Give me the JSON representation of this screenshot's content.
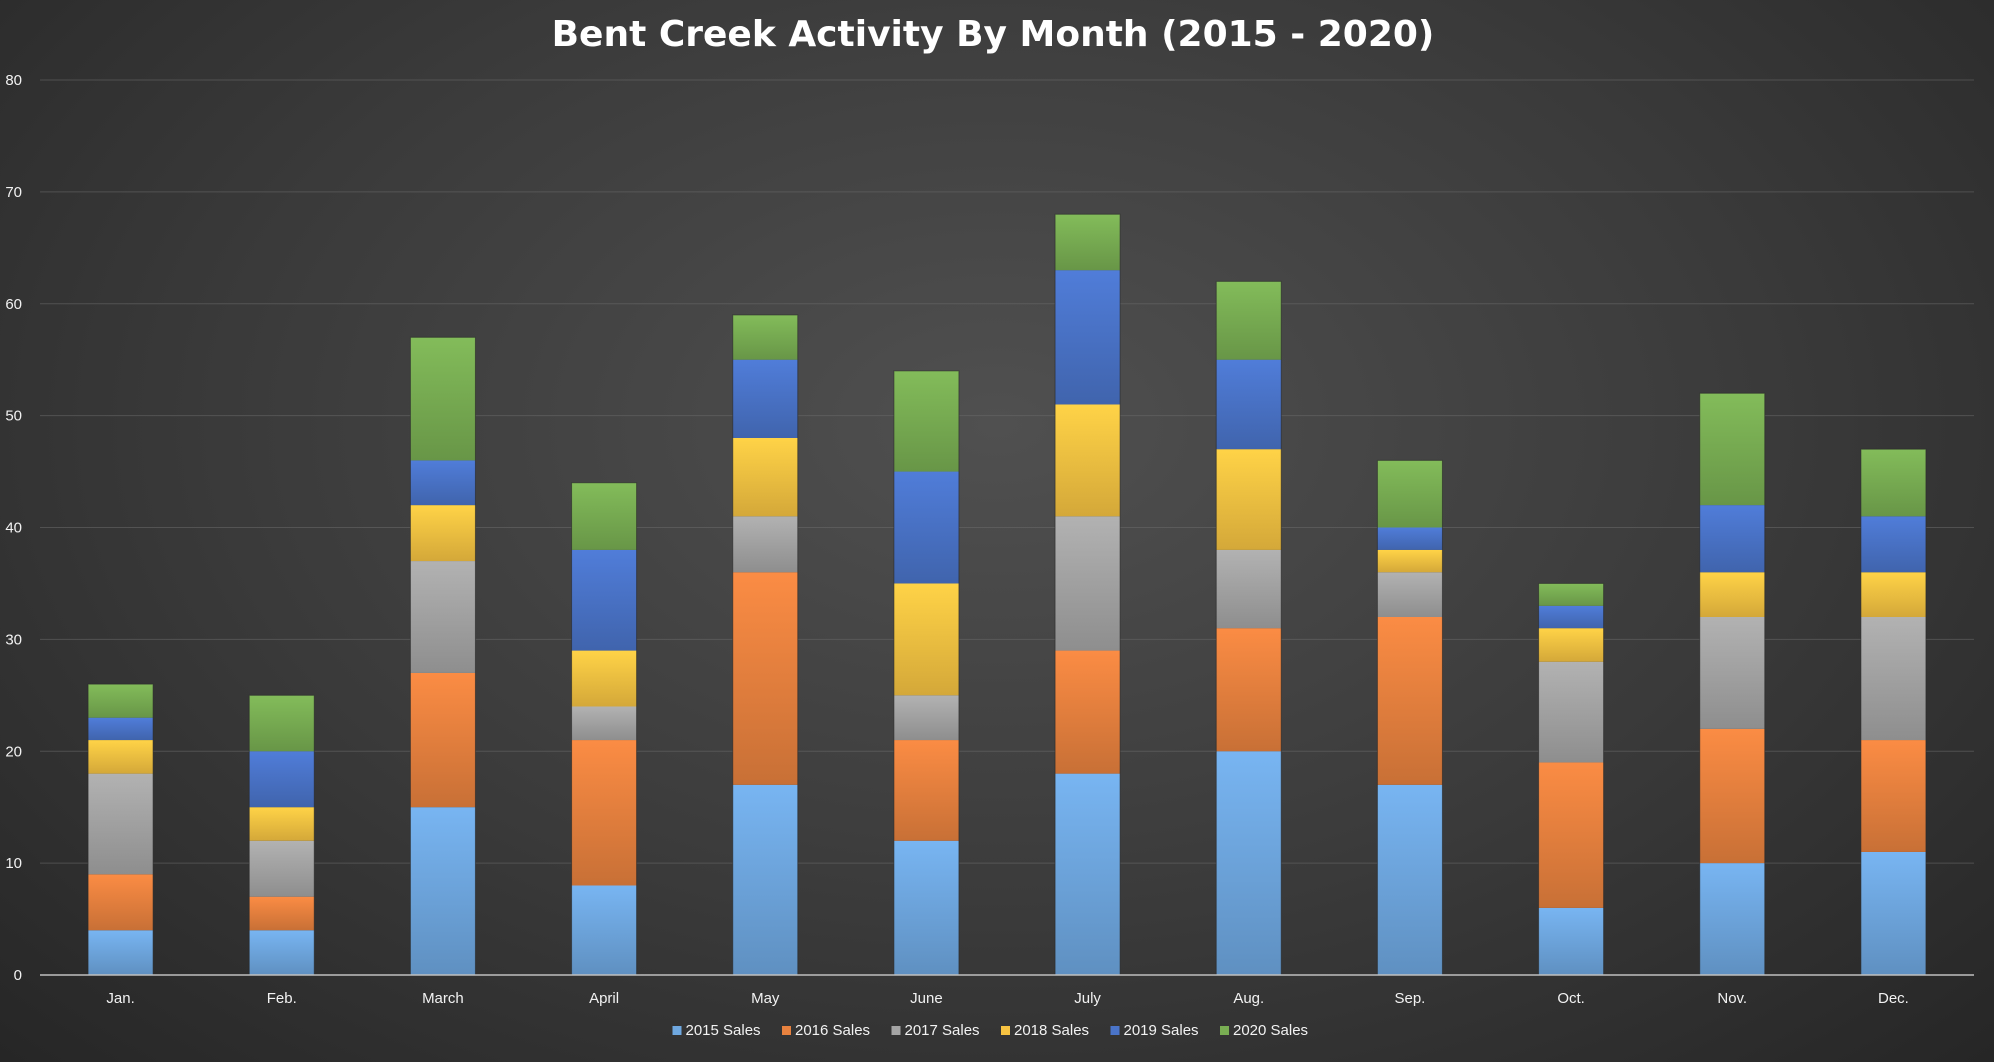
{
  "chart_data": {
    "type": "bar",
    "stacked": true,
    "title": "Bent Creek Activity By Month (2015 - 2020)",
    "xlabel": "",
    "ylabel": "",
    "ylim": [
      0,
      80
    ],
    "yticks": [
      "0",
      "10",
      "20",
      "30",
      "40",
      "50",
      "60",
      "70",
      "80"
    ],
    "grid": true,
    "legend_position": "bottom",
    "categories": [
      "Jan.",
      "Feb.",
      "March",
      "April",
      "May",
      "June",
      "July",
      "Aug.",
      "Sep.",
      "Oct.",
      "Nov.",
      "Dec."
    ],
    "series": [
      {
        "name": "2015 Sales",
        "color": "#6fa8e0",
        "values": [
          4,
          4,
          15,
          8,
          17,
          12,
          18,
          20,
          17,
          6,
          10,
          11
        ]
      },
      {
        "name": "2016 Sales",
        "color": "#e8823f",
        "values": [
          5,
          3,
          12,
          13,
          19,
          9,
          11,
          11,
          15,
          13,
          12,
          10
        ]
      },
      {
        "name": "2017 Sales",
        "color": "#a5a5a5",
        "values": [
          9,
          5,
          10,
          3,
          5,
          4,
          12,
          7,
          4,
          9,
          10,
          11
        ]
      },
      {
        "name": "2018 Sales",
        "color": "#f7c342",
        "values": [
          3,
          3,
          5,
          5,
          7,
          10,
          10,
          9,
          2,
          3,
          4,
          4
        ]
      },
      {
        "name": "2019 Sales",
        "color": "#4a74c9",
        "values": [
          2,
          5,
          4,
          9,
          7,
          10,
          12,
          8,
          2,
          2,
          6,
          5
        ]
      },
      {
        "name": "2020 Sales",
        "color": "#79ae53",
        "values": [
          3,
          5,
          11,
          6,
          4,
          9,
          5,
          7,
          6,
          2,
          10,
          6
        ]
      }
    ]
  }
}
